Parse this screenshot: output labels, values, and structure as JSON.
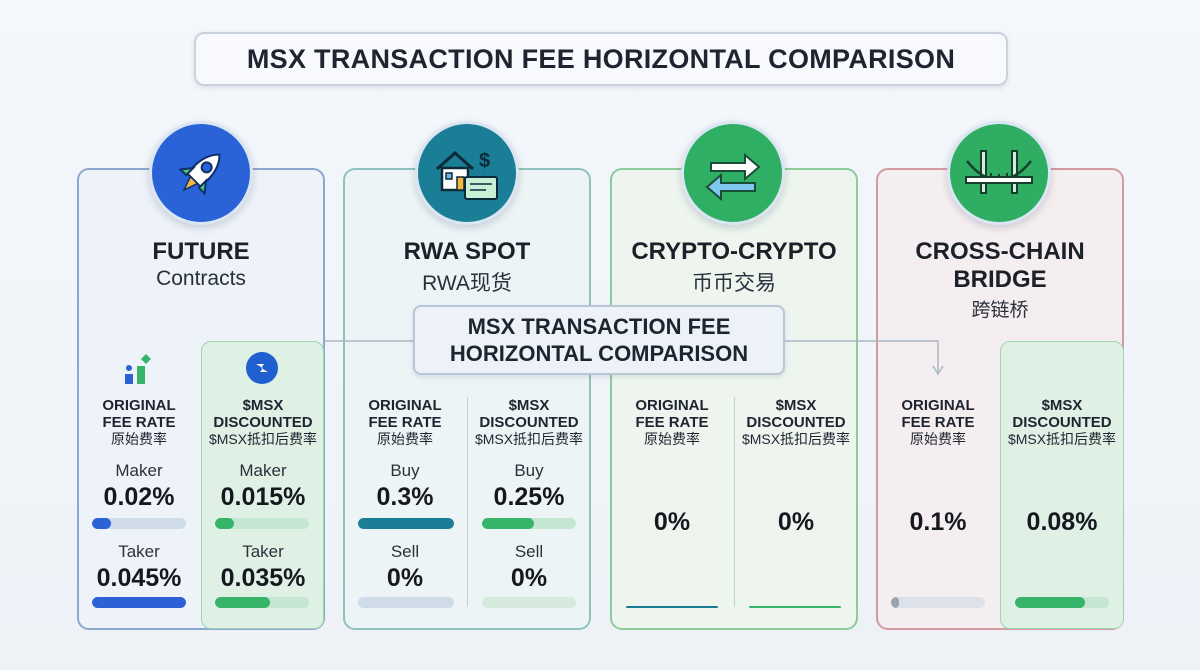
{
  "title": "MSX TRANSACTION FEE HORIZONTAL COMPARISON",
  "overlay": {
    "line1": "MSX TRANSACTION FEE",
    "line2": "HORIZONTAL COMPARISON"
  },
  "colors": {
    "blue": "#2d62d6",
    "teal": "#1a7f96",
    "green": "#36b46a",
    "red": "#d49aa2",
    "gray": "#9aa3b0"
  },
  "cards": [
    {
      "title": "FUTURE",
      "subtitle": "Contracts",
      "icon": "rocket-icon",
      "original": {
        "h1": "ORIGINAL",
        "h2": "FEE RATE",
        "zh": "原始费率",
        "rows": [
          {
            "label": "Maker",
            "value": "0.02%",
            "fill": 0.2
          },
          {
            "label": "Taker",
            "value": "0.045%",
            "fill": 1.0
          }
        ]
      },
      "discounted": {
        "h1": "$MSX",
        "h2": "DISCOUNTED",
        "zh": "$MSX抵扣后费率",
        "rows": [
          {
            "label": "Maker",
            "value": "0.015%",
            "fill": 0.2
          },
          {
            "label": "Taker",
            "value": "0.035%",
            "fill": 0.58
          }
        ]
      }
    },
    {
      "title": "RWA SPOT",
      "subtitle": "RWA现货",
      "icon": "house-certificate-icon",
      "original": {
        "h1": "ORIGINAL",
        "h2": "FEE RATE",
        "zh": "原始费率",
        "rows": [
          {
            "label": "Buy",
            "value": "0.3%",
            "fill": 1.0
          },
          {
            "label": "Sell",
            "value": "0%",
            "fill": 0
          }
        ]
      },
      "discounted": {
        "h1": "$MSX",
        "h2": "DISCOUNTED",
        "zh": "$MSX抵扣后费率",
        "rows": [
          {
            "label": "Buy",
            "value": "0.25%",
            "fill": 0.55
          },
          {
            "label": "Sell",
            "value": "0%",
            "fill": 0
          }
        ]
      }
    },
    {
      "title": "CRYPTO-CRYPTO",
      "subtitle": "币币交易",
      "icon": "swap-arrows-icon",
      "original": {
        "h1": "ORIGINAL",
        "h2": "FEE RATE",
        "zh": "原始费率",
        "value": "0%"
      },
      "discounted": {
        "h1": "$MSX",
        "h2": "DISCOUNTED",
        "zh": "$MSX抵扣后费率",
        "value": "0%"
      }
    },
    {
      "title1": "CROSS-CHAIN",
      "title2": "BRIDGE",
      "subtitle": "跨链桥",
      "icon": "bridge-icon",
      "original": {
        "h1": "ORIGINAL",
        "h2": "FEE RATE",
        "zh": "原始费率",
        "value": "0.1%",
        "fill": 0.08
      },
      "discounted": {
        "h1": "$MSX",
        "h2": "DISCOUNTED",
        "zh": "$MSX抵扣后费率",
        "value": "0.08%",
        "fill": 0.74
      }
    }
  ]
}
